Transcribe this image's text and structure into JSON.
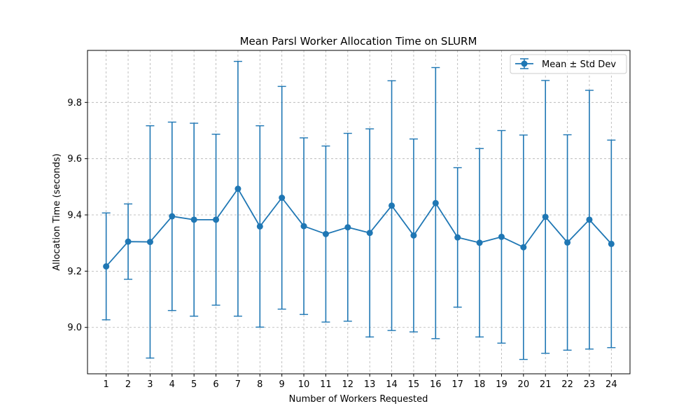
{
  "chart_data": {
    "type": "line",
    "title": "Mean Parsl Worker Allocation Time on SLURM",
    "xlabel": "Number of Workers Requested",
    "ylabel": "Allocation Time (seconds)",
    "x": [
      1,
      2,
      3,
      4,
      5,
      6,
      7,
      8,
      9,
      10,
      11,
      12,
      13,
      14,
      15,
      16,
      17,
      18,
      19,
      20,
      21,
      22,
      23,
      24
    ],
    "x_tick_labels": [
      "1",
      "2",
      "3",
      "4",
      "5",
      "6",
      "7",
      "8",
      "9",
      "10",
      "11",
      "12",
      "13",
      "14",
      "15",
      "16",
      "17",
      "18",
      "19",
      "20",
      "21",
      "22",
      "23",
      "24"
    ],
    "xlim": [
      0.15,
      24.85
    ],
    "ylim": [
      8.835,
      9.985
    ],
    "y_ticks": [
      9.0,
      9.2,
      9.4,
      9.6,
      9.8
    ],
    "y_tick_labels": [
      "9.0",
      "9.2",
      "9.4",
      "9.6",
      "9.8"
    ],
    "grid": true,
    "legend_position": "top-right",
    "series": [
      {
        "name": "Mean ± Std Dev",
        "color": "#1f77b4",
        "marker": "circle",
        "values": [
          9.217,
          9.305,
          9.304,
          9.395,
          9.383,
          9.383,
          9.493,
          9.359,
          9.461,
          9.36,
          9.332,
          9.356,
          9.336,
          9.433,
          9.327,
          9.442,
          9.32,
          9.301,
          9.322,
          9.285,
          9.393,
          9.302,
          9.383,
          9.297
        ],
        "std_dev": [
          0.19,
          0.134,
          0.413,
          0.335,
          0.343,
          0.304,
          0.453,
          0.358,
          0.396,
          0.314,
          0.313,
          0.334,
          0.37,
          0.444,
          0.343,
          0.482,
          0.248,
          0.335,
          0.378,
          0.399,
          0.485,
          0.383,
          0.46,
          0.369
        ]
      }
    ]
  }
}
